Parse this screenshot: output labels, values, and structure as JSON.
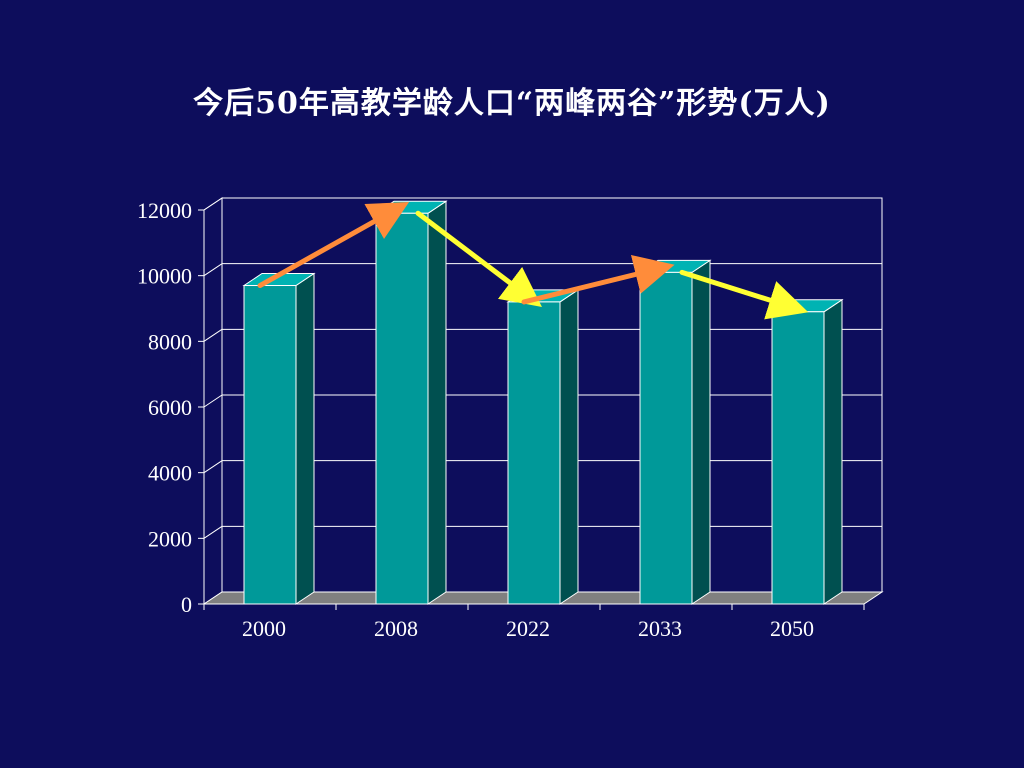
{
  "chart_data": {
    "type": "bar",
    "title": "今后50年高教学龄人口“两峰两谷”形势(万人)",
    "categories": [
      "2000",
      "2008",
      "2022",
      "2033",
      "2050"
    ],
    "values": [
      9700,
      11900,
      9200,
      10100,
      8900
    ],
    "ylim": [
      0,
      12000
    ],
    "yticks": [
      "0",
      "2000",
      "4000",
      "6000",
      "8000",
      "10000",
      "12000"
    ],
    "grid": true,
    "three_d": true,
    "colors": {
      "background": "#0d0d5c",
      "bar_front": "#009999",
      "bar_side": "#005050",
      "bar_top": "#00b3b3",
      "wall": "#0d0d5c",
      "floor": "#808080",
      "grid": "#ffffff",
      "arrow_up": "#ff8c3a",
      "arrow_down": "#ffff33"
    },
    "trend_arrows": [
      {
        "from": "2000",
        "to": "2008",
        "color": "#ff8c3a"
      },
      {
        "from": "2008",
        "to": "2022",
        "color": "#ffff33"
      },
      {
        "from": "2022",
        "to": "2033",
        "color": "#ff8c3a"
      },
      {
        "from": "2033",
        "to": "2050",
        "color": "#ffff33"
      }
    ]
  }
}
